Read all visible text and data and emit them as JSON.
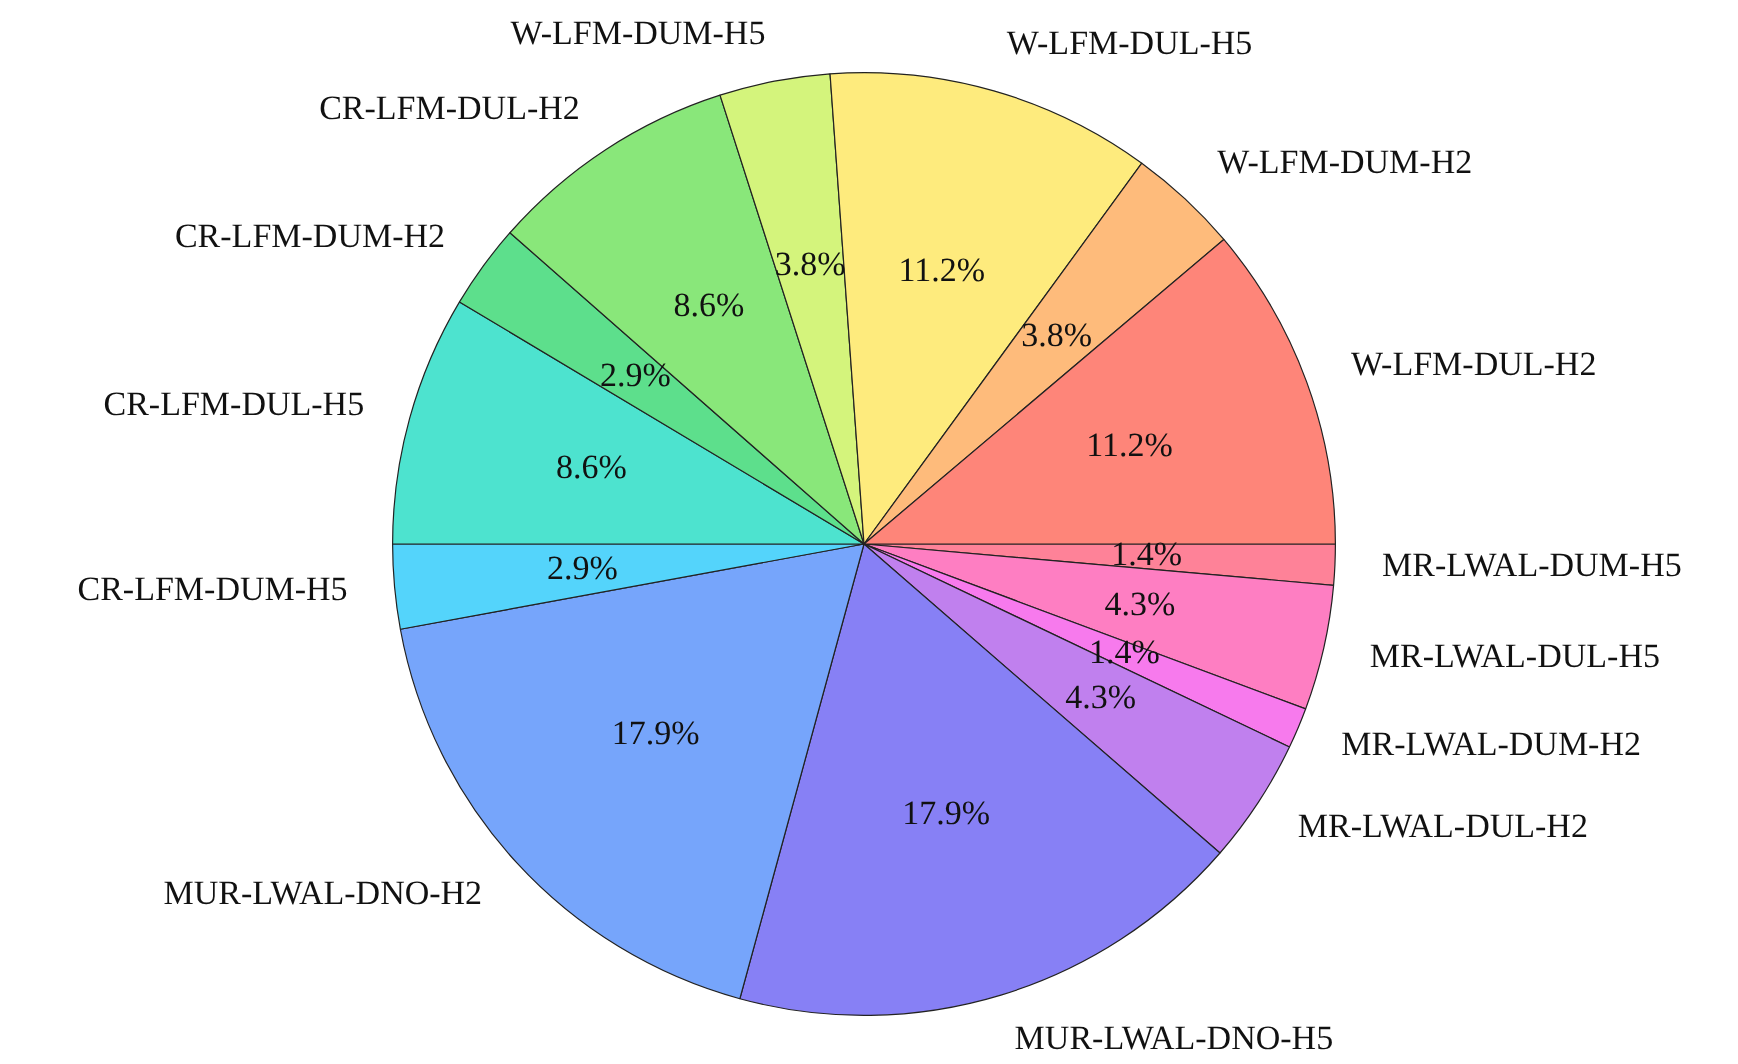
{
  "chart_data": {
    "type": "pie",
    "categories": [
      "MR-LWAL-DUM-H5",
      "MR-LWAL-DUL-H5",
      "MR-LWAL-DUM-H2",
      "MR-LWAL-DUL-H2",
      "MUR-LWAL-DNO-H5",
      "MUR-LWAL-DNO-H2",
      "CR-LFM-DUM-H5",
      "CR-LFM-DUL-H5",
      "CR-LFM-DUM-H2",
      "CR-LFM-DUL-H2",
      "W-LFM-DUM-H5",
      "W-LFM-DUL-H5",
      "W-LFM-DUM-H2",
      "W-LFM-DUL-H2"
    ],
    "values": [
      1.4,
      4.3,
      1.4,
      4.3,
      17.9,
      17.9,
      2.9,
      8.6,
      2.9,
      8.6,
      3.8,
      11.2,
      3.8,
      11.2
    ],
    "value_labels": [
      "1.4%",
      "4.3%",
      "1.4%",
      "4.3%",
      "17.9%",
      "17.9%",
      "2.9%",
      "8.6%",
      "2.9%",
      "8.6%",
      "3.8%",
      "11.2%",
      "3.8%",
      "11.2%"
    ],
    "colors": [
      "#fe8298",
      "#fe7ec2",
      "#f77aed",
      "#c080ee",
      "#8780f5",
      "#76a5fb",
      "#54d4fb",
      "#4de3cf",
      "#5ddf8c",
      "#89e77a",
      "#d4f47c",
      "#feeb7d",
      "#febb7b",
      "#fe8579"
    ],
    "legend": false
  }
}
